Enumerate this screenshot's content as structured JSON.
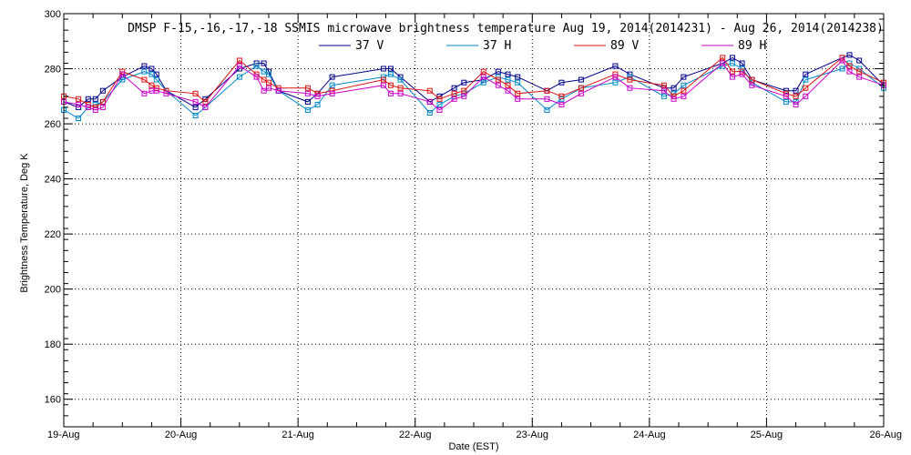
{
  "chart_data": {
    "type": "line",
    "title": "DMSP F-15,-16,-17,-18 SSMIS microwave brightness temperature Aug 19, 2014(2014231) - Aug 26, 2014(2014238)",
    "xlabel": "Date (EST)",
    "ylabel": "Brightness Temperature, Deg K",
    "x_ticks": [
      "19-Aug",
      "20-Aug",
      "21-Aug",
      "22-Aug",
      "23-Aug",
      "24-Aug",
      "25-Aug",
      "26-Aug"
    ],
    "xlim": [
      "2014-08-19",
      "2014-08-26"
    ],
    "ylim": [
      150,
      300
    ],
    "y_ticks": [
      160,
      180,
      200,
      220,
      240,
      260,
      280,
      300
    ],
    "grid": true,
    "legend_position": "top-center",
    "series": [
      {
        "name": "37 V",
        "color": "#00008b",
        "x": [
          "2014-08-19 00:00",
          "2014-08-19 03:00",
          "2014-08-19 05:00",
          "2014-08-19 06:30",
          "2014-08-19 08:00",
          "2014-08-19 12:00",
          "2014-08-19 16:30",
          "2014-08-19 18:00",
          "2014-08-19 19:00",
          "2014-08-19 21:00",
          "2014-08-20 03:00",
          "2014-08-20 05:00",
          "2014-08-20 12:00",
          "2014-08-20 15:30",
          "2014-08-20 17:00",
          "2014-08-20 18:00",
          "2014-08-20 20:00",
          "2014-08-21 02:00",
          "2014-08-21 04:00",
          "2014-08-21 07:00",
          "2014-08-21 17:30",
          "2014-08-21 19:00",
          "2014-08-21 21:00",
          "2014-08-22 03:00",
          "2014-08-22 05:00",
          "2014-08-22 08:00",
          "2014-08-22 10:00",
          "2014-08-22 14:00",
          "2014-08-22 17:00",
          "2014-08-22 19:00",
          "2014-08-22 21:00",
          "2014-08-23 03:00",
          "2014-08-23 06:00",
          "2014-08-23 10:00",
          "2014-08-23 17:00",
          "2014-08-23 20:00",
          "2014-08-24 03:00",
          "2014-08-24 05:00",
          "2014-08-24 07:00",
          "2014-08-24 15:00",
          "2014-08-24 17:00",
          "2014-08-24 19:00",
          "2014-08-24 21:00",
          "2014-08-25 04:00",
          "2014-08-25 06:00",
          "2014-08-25 08:00",
          "2014-08-25 15:30",
          "2014-08-25 17:00",
          "2014-08-25 19:00",
          "2014-08-26 00:00"
        ],
        "values": [
          268,
          266,
          269,
          269,
          272,
          277,
          281,
          280,
          278,
          272,
          266,
          269,
          280,
          282,
          282,
          279,
          272,
          268,
          271,
          277,
          280,
          280,
          277,
          268,
          270,
          273,
          275,
          276,
          279,
          278,
          277,
          272,
          275,
          276,
          281,
          278,
          273,
          273,
          277,
          282,
          284,
          282,
          276,
          272,
          272,
          278,
          284,
          285,
          283,
          274
        ]
      },
      {
        "name": "37 H",
        "color": "#0088c8",
        "x": [
          "2014-08-19 00:00",
          "2014-08-19 03:00",
          "2014-08-19 05:00",
          "2014-08-19 06:30",
          "2014-08-19 08:00",
          "2014-08-19 12:00",
          "2014-08-19 16:30",
          "2014-08-19 18:00",
          "2014-08-19 19:00",
          "2014-08-19 21:00",
          "2014-08-20 03:00",
          "2014-08-20 05:00",
          "2014-08-20 12:00",
          "2014-08-20 15:30",
          "2014-08-20 17:00",
          "2014-08-20 18:00",
          "2014-08-20 20:00",
          "2014-08-21 02:00",
          "2014-08-21 04:00",
          "2014-08-21 07:00",
          "2014-08-21 17:30",
          "2014-08-21 19:00",
          "2014-08-21 21:00",
          "2014-08-22 03:00",
          "2014-08-22 05:00",
          "2014-08-22 08:00",
          "2014-08-22 10:00",
          "2014-08-22 14:00",
          "2014-08-22 17:00",
          "2014-08-22 19:00",
          "2014-08-22 21:00",
          "2014-08-23 03:00",
          "2014-08-23 06:00",
          "2014-08-23 10:00",
          "2014-08-23 17:00",
          "2014-08-23 20:00",
          "2014-08-24 03:00",
          "2014-08-24 05:00",
          "2014-08-24 07:00",
          "2014-08-24 15:00",
          "2014-08-24 17:00",
          "2014-08-24 19:00",
          "2014-08-24 21:00",
          "2014-08-25 04:00",
          "2014-08-25 06:00",
          "2014-08-25 08:00",
          "2014-08-25 15:30",
          "2014-08-25 17:00",
          "2014-08-25 19:00",
          "2014-08-26 00:00"
        ],
        "values": [
          265,
          262,
          266,
          267,
          268,
          276,
          279,
          278,
          276,
          272,
          263,
          266,
          277,
          281,
          279,
          278,
          272,
          265,
          267,
          274,
          277,
          278,
          276,
          264,
          267,
          270,
          271,
          275,
          277,
          276,
          275,
          265,
          269,
          273,
          275,
          277,
          270,
          271,
          274,
          281,
          282,
          280,
          275,
          268,
          268,
          276,
          280,
          282,
          280,
          273
        ]
      },
      {
        "name": "89 V",
        "color": "#dc1414",
        "x": [
          "2014-08-19 00:00",
          "2014-08-19 03:00",
          "2014-08-19 05:00",
          "2014-08-19 06:30",
          "2014-08-19 08:00",
          "2014-08-19 12:00",
          "2014-08-19 16:30",
          "2014-08-19 18:00",
          "2014-08-19 19:00",
          "2014-08-19 21:00",
          "2014-08-20 03:00",
          "2014-08-20 05:00",
          "2014-08-20 12:00",
          "2014-08-20 15:30",
          "2014-08-20 17:00",
          "2014-08-20 18:00",
          "2014-08-20 20:00",
          "2014-08-21 02:00",
          "2014-08-21 04:00",
          "2014-08-21 07:00",
          "2014-08-21 17:30",
          "2014-08-21 19:00",
          "2014-08-21 21:00",
          "2014-08-22 03:00",
          "2014-08-22 05:00",
          "2014-08-22 08:00",
          "2014-08-22 10:00",
          "2014-08-22 14:00",
          "2014-08-22 17:00",
          "2014-08-22 19:00",
          "2014-08-22 21:00",
          "2014-08-23 03:00",
          "2014-08-23 06:00",
          "2014-08-23 10:00",
          "2014-08-23 17:00",
          "2014-08-23 20:00",
          "2014-08-24 03:00",
          "2014-08-24 05:00",
          "2014-08-24 07:00",
          "2014-08-24 15:00",
          "2014-08-24 17:00",
          "2014-08-24 19:00",
          "2014-08-24 21:00",
          "2014-08-25 04:00",
          "2014-08-25 06:00",
          "2014-08-25 08:00",
          "2014-08-25 15:30",
          "2014-08-25 17:00",
          "2014-08-25 19:00",
          "2014-08-26 00:00"
        ],
        "values": [
          270,
          269,
          267,
          266,
          268,
          279,
          276,
          274,
          273,
          272,
          271,
          268,
          283,
          278,
          276,
          275,
          273,
          273,
          271,
          272,
          276,
          274,
          273,
          272,
          269,
          271,
          272,
          279,
          276,
          274,
          271,
          272,
          270,
          273,
          278,
          276,
          274,
          270,
          272,
          284,
          279,
          279,
          276,
          271,
          270,
          273,
          284,
          281,
          279,
          275
        ]
      },
      {
        "name": "89 H",
        "color": "#c800c8",
        "x": [
          "2014-08-19 00:00",
          "2014-08-19 03:00",
          "2014-08-19 05:00",
          "2014-08-19 06:30",
          "2014-08-19 08:00",
          "2014-08-19 12:00",
          "2014-08-19 16:30",
          "2014-08-19 18:00",
          "2014-08-19 19:00",
          "2014-08-19 21:00",
          "2014-08-20 03:00",
          "2014-08-20 05:00",
          "2014-08-20 12:00",
          "2014-08-20 15:30",
          "2014-08-20 17:00",
          "2014-08-20 18:00",
          "2014-08-20 20:00",
          "2014-08-21 02:00",
          "2014-08-21 04:00",
          "2014-08-21 07:00",
          "2014-08-21 17:30",
          "2014-08-21 19:00",
          "2014-08-21 21:00",
          "2014-08-22 03:00",
          "2014-08-22 05:00",
          "2014-08-22 08:00",
          "2014-08-22 10:00",
          "2014-08-22 14:00",
          "2014-08-22 17:00",
          "2014-08-22 19:00",
          "2014-08-22 21:00",
          "2014-08-23 03:00",
          "2014-08-23 06:00",
          "2014-08-23 10:00",
          "2014-08-23 17:00",
          "2014-08-23 20:00",
          "2014-08-24 03:00",
          "2014-08-24 05:00",
          "2014-08-24 07:00",
          "2014-08-24 15:00",
          "2014-08-24 17:00",
          "2014-08-24 19:00",
          "2014-08-24 21:00",
          "2014-08-25 04:00",
          "2014-08-25 06:00",
          "2014-08-25 08:00",
          "2014-08-25 15:30",
          "2014-08-25 17:00",
          "2014-08-25 19:00",
          "2014-08-26 00:00"
        ],
        "values": [
          268,
          267,
          266,
          265,
          266,
          278,
          271,
          272,
          272,
          271,
          268,
          266,
          281,
          277,
          272,
          273,
          272,
          271,
          270,
          271,
          274,
          271,
          271,
          268,
          265,
          269,
          270,
          277,
          274,
          272,
          269,
          269,
          267,
          271,
          277,
          273,
          272,
          269,
          270,
          282,
          277,
          278,
          274,
          270,
          267,
          270,
          283,
          279,
          277,
          274
        ]
      }
    ]
  }
}
